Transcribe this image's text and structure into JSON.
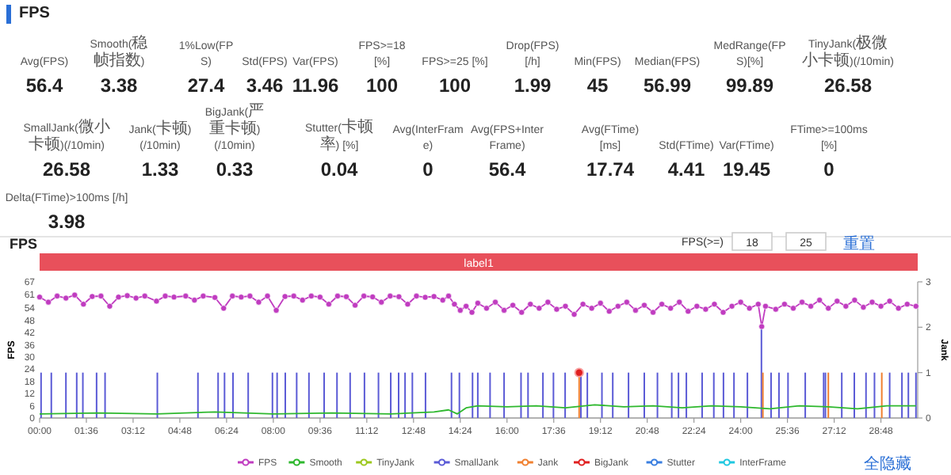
{
  "chart_data": [
    {
      "type": "other",
      "title": "FPS",
      "categories": [
        "Avg(FPS)",
        "Smooth(稳帧指数)",
        "1%Low(FPS)",
        "Std(FPS)",
        "Var(FPS)",
        "FPS>=18 [%]",
        "FPS>=25 [%]",
        "Drop(FPS) [/h]",
        "Min(FPS)",
        "Median(FPS)",
        "MedRange(FPS)[%]",
        "TinyJank(极微小卡顿)(/10min)",
        "SmallJank(微小卡顿)(/10min)",
        "Jank(卡顿)(/10min)",
        "BigJank(严重卡顿)(/10min)",
        "Stutter(卡顿率) [%]",
        "Avg(InterFrame)",
        "Avg(FPS+InterFrame)",
        "Avg(FTime) [ms]",
        "Std(FTime)",
        "Var(FTime)",
        "FTime>=100ms [%]",
        "Delta(FTime)>100ms [/h]"
      ],
      "values": [
        56.4,
        3.38,
        27.4,
        3.46,
        11.96,
        100,
        100,
        1.99,
        45,
        56.99,
        99.89,
        26.58,
        26.58,
        1.33,
        0.33,
        0.04,
        0,
        56.4,
        17.74,
        4.41,
        19.45,
        0,
        3.98
      ],
      "data_labels": true
    },
    {
      "type": "line",
      "title": "FPS",
      "ylabel": "FPS",
      "y2label": "Jank",
      "xlim": [
        0,
        30.06
      ],
      "ylim": [
        0,
        67
      ],
      "y2lim": [
        0,
        3
      ],
      "xticks": [
        {
          "value": 0,
          "label": "00:00"
        },
        {
          "value": 1.6,
          "label": "01:36"
        },
        {
          "value": 3.2,
          "label": "03:12"
        },
        {
          "value": 4.8,
          "label": "04:48"
        },
        {
          "value": 6.4,
          "label": "06:24"
        },
        {
          "value": 8,
          "label": "08:00"
        },
        {
          "value": 9.6,
          "label": "09:36"
        },
        {
          "value": 11.2,
          "label": "11:12"
        },
        {
          "value": 12.8,
          "label": "12:48"
        },
        {
          "value": 14.4,
          "label": "14:24"
        },
        {
          "value": 16,
          "label": "16:00"
        },
        {
          "value": 17.6,
          "label": "17:36"
        },
        {
          "value": 19.2,
          "label": "19:12"
        },
        {
          "value": 20.8,
          "label": "20:48"
        },
        {
          "value": 22.4,
          "label": "22:24"
        },
        {
          "value": 24,
          "label": "24:00"
        },
        {
          "value": 25.6,
          "label": "25:36"
        },
        {
          "value": 27.2,
          "label": "27:12"
        },
        {
          "value": 28.8,
          "label": "28:48"
        }
      ],
      "yticks": [
        0,
        6,
        12,
        18,
        24,
        30,
        36,
        42,
        48,
        54,
        {
          "value": 60.9,
          "label": "61"
        },
        67
      ],
      "y2ticks": [
        0,
        1,
        2,
        3
      ],
      "annotations": [
        "FPS(>=)",
        "18",
        "25",
        "重置",
        "全隐藏",
        "label1"
      ],
      "legend": "bottom",
      "series": [
        {
          "name": "FPS",
          "type": "line",
          "color": "#c03cc0",
          "marker": "circle",
          "x": [
            0,
            0.3,
            0.6,
            0.9,
            1.2,
            1.5,
            1.8,
            2.1,
            2.4,
            2.7,
            3.0,
            3.3,
            3.6,
            4.0,
            4.3,
            4.6,
            5.0,
            5.3,
            5.6,
            6.0,
            6.3,
            6.6,
            6.9,
            7.2,
            7.5,
            7.8,
            8.1,
            8.4,
            8.7,
            9.0,
            9.3,
            9.6,
            9.9,
            10.2,
            10.5,
            10.8,
            11.1,
            11.4,
            11.7,
            12.0,
            12.3,
            12.6,
            12.9,
            13.2,
            13.5,
            13.8,
            14.0,
            14.2,
            14.4,
            14.6,
            14.8,
            15.0,
            15.3,
            15.6,
            15.9,
            16.2,
            16.5,
            16.8,
            17.1,
            17.4,
            17.7,
            18.0,
            18.3,
            18.6,
            18.9,
            19.2,
            19.5,
            19.8,
            20.1,
            20.4,
            20.7,
            21.0,
            21.3,
            21.6,
            21.9,
            22.2,
            22.5,
            22.8,
            23.1,
            23.4,
            23.7,
            24.0,
            24.3,
            24.6,
            24.72,
            24.85,
            25.2,
            25.5,
            25.8,
            26.1,
            26.4,
            26.7,
            27.0,
            27.3,
            27.6,
            27.9,
            28.2,
            28.5,
            28.8,
            29.1,
            29.4,
            29.7,
            30.0
          ],
          "values": [
            59.5,
            57,
            60,
            59,
            60.5,
            56,
            59.8,
            60,
            55,
            59.5,
            60.2,
            59,
            60,
            57.5,
            60,
            59.5,
            60,
            58,
            60,
            59.3,
            54,
            60,
            59.5,
            60,
            57,
            60,
            53,
            59.8,
            60,
            58,
            60,
            59.5,
            56,
            60,
            59.7,
            55.5,
            60,
            59.6,
            57,
            60,
            59.7,
            56,
            60,
            59.4,
            59.8,
            58,
            60,
            56,
            53,
            55,
            52,
            56.5,
            54,
            57,
            53,
            55.5,
            52,
            56,
            54,
            57,
            53.5,
            55,
            51,
            56,
            54,
            56.5,
            52.5,
            55,
            57,
            53,
            55.5,
            52,
            56,
            54,
            57,
            52.5,
            55,
            53.5,
            56,
            52,
            55,
            57,
            54,
            56,
            45,
            55,
            53.5,
            56,
            54,
            57,
            55,
            58,
            54,
            57.5,
            55,
            58,
            54.5,
            57,
            55,
            57.5,
            54,
            56,
            55
          ]
        },
        {
          "name": "Smooth",
          "type": "line",
          "color": "#2eb82e",
          "x": [
            0,
            2,
            4,
            6,
            8,
            10,
            12,
            13.5,
            14,
            14.3,
            14.6,
            15,
            16,
            17,
            18,
            19,
            20,
            21,
            22,
            23,
            24,
            25,
            26,
            27,
            28,
            29,
            30
          ],
          "values": [
            2,
            2.5,
            2,
            3,
            2,
            2.5,
            2,
            3,
            4,
            2,
            5,
            6,
            5.5,
            6,
            5,
            6.5,
            5.5,
            6,
            5,
            6,
            5.5,
            4.5,
            6,
            5.5,
            4.5,
            6,
            6
          ]
        },
        {
          "name": "TinyJank",
          "type": "line",
          "color": "#9cc81e"
        },
        {
          "name": "SmallJank",
          "type": "bar",
          "axis": "y2",
          "color": "#5b5bd6",
          "x": [
            0.05,
            0.4,
            0.9,
            1.27,
            1.48,
            1.95,
            2.24,
            4.03,
            5.42,
            6.11,
            6.33,
            6.62,
            7.14,
            7.97,
            8.13,
            8.41,
            8.8,
            9.22,
            9.74,
            10.18,
            10.63,
            11.12,
            11.6,
            12.02,
            12.29,
            12.51,
            12.76,
            13.21,
            14.1,
            14.37,
            14.82,
            15.0,
            15.42,
            15.9,
            16.48,
            16.72,
            17.23,
            17.59,
            17.99,
            18.53,
            18.75,
            19.25,
            19.62,
            20.16,
            20.7,
            21.15,
            21.64,
            21.87,
            22.14,
            22.68,
            23.08,
            23.41,
            23.77,
            24.23,
            24.71,
            25.04,
            25.31,
            25.62,
            26.21,
            26.84,
            26.9,
            27.46,
            27.89,
            28.29,
            28.58,
            29.1,
            29.52,
            29.74,
            30.0
          ],
          "values": [
            1,
            1,
            1,
            1,
            1,
            1,
            1,
            1,
            1,
            1,
            1,
            1,
            1,
            1,
            1,
            1,
            1,
            1,
            1,
            1,
            1,
            1,
            1,
            1,
            1,
            1,
            1,
            1,
            1,
            1,
            1,
            1,
            1,
            1,
            1,
            1,
            1,
            1,
            1,
            1,
            1,
            1,
            1,
            1,
            1,
            1,
            1,
            1,
            1,
            1,
            1,
            1,
            1,
            1,
            2,
            1,
            1,
            1,
            1,
            1,
            1,
            1,
            1,
            1,
            1,
            1,
            1,
            1,
            1
          ]
        },
        {
          "name": "Jank",
          "type": "bar",
          "axis": "y2",
          "color": "#f08030",
          "x": [
            18.47,
            24.76,
            27.0,
            28.83
          ],
          "values": [
            1,
            1,
            1,
            1
          ]
        },
        {
          "name": "BigJank",
          "type": "scatter",
          "axis": "y2",
          "color": "#e02020",
          "marker": "circle",
          "x": [
            18.47
          ],
          "values": [
            1
          ]
        },
        {
          "name": "Stutter",
          "type": "line",
          "axis": "y2",
          "color": "#3a7fe0"
        },
        {
          "name": "InterFrame",
          "type": "line",
          "axis": "y2",
          "color": "#20c8e0"
        }
      ]
    }
  ]
}
